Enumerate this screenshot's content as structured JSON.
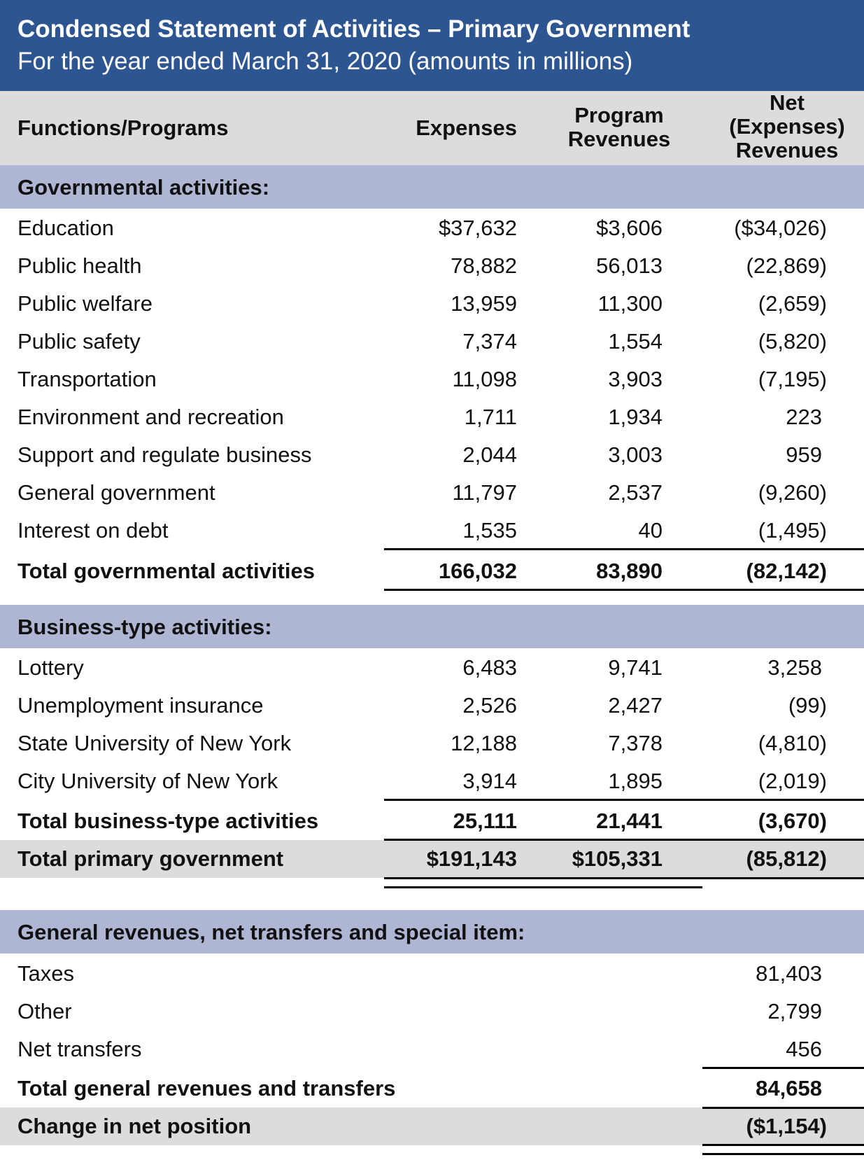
{
  "header": {
    "title": "Condensed Statement of Activities – Primary Government",
    "subtitle": "For the year ended March 31, 2020 (amounts in millions)"
  },
  "columns": {
    "functions": "Functions/Programs",
    "expenses": "Expenses",
    "program_revenues_1": "Program",
    "program_revenues_2": "Revenues",
    "net_1": "Net",
    "net_2": "(Expenses)",
    "net_3": "Revenues"
  },
  "colors": {
    "title_band": "#2c5592",
    "section_band": "#aeb6d3",
    "total_band": "#dcdcdc"
  },
  "governmental": {
    "heading": "Governmental activities:",
    "rows": [
      {
        "label": "Education",
        "expenses": "$37,632",
        "program": "$3,606",
        "net": "($34,026)"
      },
      {
        "label": "Public health",
        "expenses": "78,882",
        "program": "56,013",
        "net": "(22,869)"
      },
      {
        "label": "Public welfare",
        "expenses": "13,959",
        "program": "11,300",
        "net": "(2,659)"
      },
      {
        "label": "Public safety",
        "expenses": "7,374",
        "program": "1,554",
        "net": "(5,820)"
      },
      {
        "label": "Transportation",
        "expenses": "11,098",
        "program": "3,903",
        "net": "(7,195)"
      },
      {
        "label": "Environment and recreation",
        "expenses": "1,711",
        "program": "1,934",
        "net": "223"
      },
      {
        "label": "Support and regulate business",
        "expenses": "2,044",
        "program": "3,003",
        "net": "959"
      },
      {
        "label": "General government",
        "expenses": "11,797",
        "program": "2,537",
        "net": "(9,260)"
      },
      {
        "label": "Interest on debt",
        "expenses": "1,535",
        "program": "40",
        "net": "(1,495)"
      }
    ],
    "total": {
      "label": "Total governmental activities",
      "expenses": "166,032",
      "program": "83,890",
      "net": "(82,142)"
    }
  },
  "business": {
    "heading": "Business-type activities:",
    "rows": [
      {
        "label": "Lottery",
        "expenses": "6,483",
        "program": "9,741",
        "net": "3,258"
      },
      {
        "label": "Unemployment insurance",
        "expenses": "2,526",
        "program": "2,427",
        "net": "(99)"
      },
      {
        "label": "State University of New York",
        "expenses": "12,188",
        "program": "7,378",
        "net": "(4,810)"
      },
      {
        "label": "City University of New York",
        "expenses": "3,914",
        "program": "1,895",
        "net": "(2,019)"
      }
    ],
    "total": {
      "label": "Total business-type activities",
      "expenses": "25,111",
      "program": "21,441",
      "net": "(3,670)"
    }
  },
  "primary_total": {
    "label": "Total primary government",
    "expenses": "$191,143",
    "program": "$105,331",
    "net": "(85,812)"
  },
  "general": {
    "heading": "General revenues, net transfers and special item:",
    "rows": [
      {
        "label": "Taxes",
        "net": "81,403"
      },
      {
        "label": "Other",
        "net": "2,799"
      },
      {
        "label": "Net transfers",
        "net": "456"
      }
    ],
    "total": {
      "label": "Total general revenues and transfers",
      "net": "84,658"
    },
    "change": {
      "label": "Change in net position",
      "net": "($1,154)"
    }
  }
}
